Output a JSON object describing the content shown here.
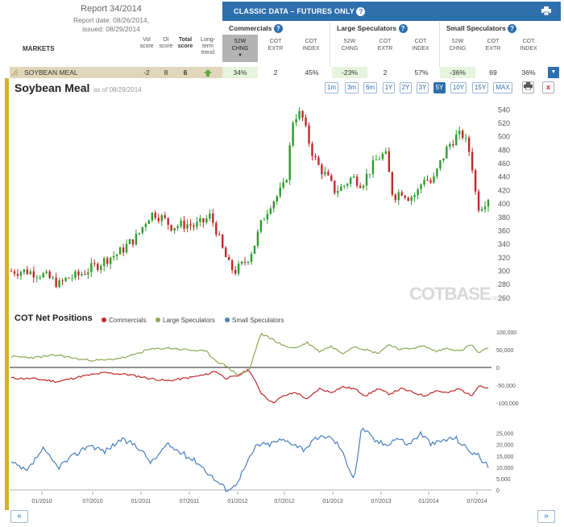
{
  "report": {
    "title": "Report 34/2014",
    "report_date": "Report date: 08/26/2014,",
    "issued": "issued: 08/29/2014"
  },
  "header": {
    "markets_label": "MARKETS",
    "vol_score": [
      "Vol",
      "score"
    ],
    "oi_score": [
      "OI",
      "score"
    ],
    "total_score": [
      "Total",
      "score"
    ],
    "long_term": [
      "Long-",
      "term",
      "trend"
    ]
  },
  "classic": {
    "title": "CLASSIC DATA – FUTURES ONLY",
    "groups": [
      {
        "name": "Commercials",
        "cols": [
          [
            "52W",
            "CHNG"
          ],
          [
            "COT",
            "EXTR"
          ],
          [
            "COT",
            "INDEX"
          ]
        ]
      },
      {
        "name": "Large Speculators",
        "cols": [
          [
            "52W",
            "CHNG"
          ],
          [
            "COT",
            "EXTR"
          ],
          [
            "COT",
            "INDEX"
          ]
        ]
      },
      {
        "name": "Small Speculators",
        "cols": [
          [
            "52W",
            "CHNG"
          ],
          [
            "COT",
            "EXTR"
          ],
          [
            "COT",
            "INDEX"
          ]
        ]
      }
    ]
  },
  "row": {
    "market": "SOYBEAN MEAL",
    "vol": "-2",
    "oi": "8",
    "total": "6",
    "comm": [
      "34%",
      "2",
      "45%"
    ],
    "large": [
      "-23%",
      "2",
      "57%"
    ],
    "small": [
      "-36%",
      "69",
      "36%"
    ]
  },
  "chart": {
    "title": "Soybean Meal",
    "as_of": "as of 08/29/2014",
    "ranges": [
      "1m",
      "3m",
      "6m",
      "1Y",
      "2Y",
      "3Y",
      "5Y",
      "10Y",
      "15Y",
      "MAX"
    ],
    "active_range": "5Y",
    "close_label": "x"
  },
  "cot": {
    "title": "COT Net Positions",
    "legend": [
      "Commercials",
      "Large Speculators",
      "Small Speculators"
    ]
  },
  "watermark": {
    "main": "COTBASE",
    "sub": ".com"
  },
  "colors": {
    "accent": "#2e6fae",
    "up": "#2e9a2e",
    "down": "#c0282a",
    "commercials": "#c0282a",
    "large": "#8aaa55",
    "small": "#4a7fbf",
    "sidebar": "#d4af37"
  },
  "chart_data": [
    {
      "type": "candlestick",
      "title": "Soybean Meal",
      "ylim": [
        255,
        550
      ],
      "yticks": [
        260,
        280,
        300,
        320,
        340,
        360,
        380,
        400,
        420,
        440,
        460,
        480,
        500,
        520,
        540
      ],
      "x_ticks": [
        "01/2010",
        "07/2010",
        "01/2011",
        "07/2011",
        "01/2012",
        "07/2012",
        "01/2013",
        "07/2013",
        "01/2014",
        "07/2014"
      ],
      "anchors": [
        [
          0,
          300
        ],
        [
          20,
          300
        ],
        [
          40,
          295
        ],
        [
          55,
          285
        ],
        [
          62,
          280
        ],
        [
          72,
          290
        ],
        [
          85,
          293
        ],
        [
          100,
          303
        ],
        [
          112,
          310
        ],
        [
          125,
          320
        ],
        [
          137,
          326
        ],
        [
          150,
          340
        ],
        [
          162,
          352
        ],
        [
          175,
          380
        ],
        [
          183,
          387
        ],
        [
          195,
          378
        ],
        [
          205,
          367
        ],
        [
          215,
          368
        ],
        [
          225,
          370
        ],
        [
          235,
          367
        ],
        [
          245,
          372
        ],
        [
          255,
          382
        ],
        [
          262,
          365
        ],
        [
          270,
          335
        ],
        [
          280,
          307
        ],
        [
          287,
          300
        ],
        [
          297,
          310
        ],
        [
          305,
          322
        ],
        [
          312,
          340
        ],
        [
          322,
          375
        ],
        [
          332,
          400
        ],
        [
          340,
          410
        ],
        [
          352,
          430
        ],
        [
          362,
          530
        ],
        [
          372,
          535
        ],
        [
          380,
          500
        ],
        [
          388,
          470
        ],
        [
          395,
          455
        ],
        [
          405,
          440
        ],
        [
          415,
          420
        ],
        [
          425,
          425
        ],
        [
          437,
          440
        ],
        [
          450,
          430
        ],
        [
          460,
          450
        ],
        [
          470,
          468
        ],
        [
          480,
          475
        ],
        [
          490,
          410
        ],
        [
          500,
          420
        ],
        [
          510,
          410
        ],
        [
          520,
          415
        ],
        [
          530,
          440
        ],
        [
          540,
          430
        ],
        [
          550,
          460
        ],
        [
          560,
          485
        ],
        [
          570,
          500
        ],
        [
          580,
          503
        ],
        [
          590,
          470
        ],
        [
          595,
          420
        ],
        [
          600,
          395
        ],
        [
          605,
          400
        ],
        [
          612,
          410
        ]
      ],
      "xlim": [
        0,
        612
      ]
    },
    {
      "type": "line",
      "title": "COT Net Positions",
      "ylim": [
        -110000,
        110000
      ],
      "yticks": [
        100000,
        50000,
        0,
        -50000,
        -100000
      ],
      "series": [
        {
          "name": "Commercials",
          "x": [
            0,
            30,
            60,
            90,
            120,
            150,
            175,
            200,
            225,
            250,
            262,
            275,
            290,
            305,
            320,
            335,
            350,
            365,
            380,
            395,
            410,
            425,
            440,
            455,
            470,
            485,
            500,
            515,
            530,
            545,
            560,
            575,
            590,
            600,
            612
          ],
          "values": [
            -30000,
            -32000,
            -40000,
            -25000,
            -15000,
            -20000,
            -30000,
            -38000,
            -30000,
            -20000,
            -10000,
            -30000,
            -25000,
            -5000,
            -70000,
            -100000,
            -80000,
            -70000,
            -90000,
            -60000,
            -70000,
            -55000,
            -60000,
            -80000,
            -60000,
            -75000,
            -60000,
            -70000,
            -80000,
            -65000,
            -72000,
            -60000,
            -80000,
            -50000,
            -60000
          ]
        },
        {
          "name": "Large Speculators",
          "x": [
            0,
            30,
            60,
            90,
            120,
            150,
            175,
            200,
            225,
            250,
            262,
            275,
            290,
            305,
            320,
            335,
            350,
            365,
            380,
            395,
            410,
            425,
            440,
            455,
            470,
            485,
            500,
            515,
            530,
            545,
            560,
            575,
            590,
            600,
            612
          ],
          "values": [
            30000,
            28000,
            35000,
            22000,
            20000,
            30000,
            50000,
            55000,
            50000,
            45000,
            20000,
            5000,
            -20000,
            -10000,
            95000,
            80000,
            60000,
            55000,
            70000,
            45000,
            60000,
            40000,
            60000,
            50000,
            40000,
            65000,
            50000,
            55000,
            60000,
            45000,
            55000,
            45000,
            65000,
            40000,
            55000
          ]
        },
        {
          "name": "Small Speculators",
          "x": [
            0,
            20,
            40,
            60,
            80,
            100,
            120,
            140,
            160,
            180,
            200,
            220,
            240,
            260,
            275,
            285,
            300,
            315,
            330,
            345,
            360,
            375,
            390,
            405,
            420,
            440,
            450,
            465,
            480,
            495,
            510,
            525,
            540,
            555,
            570,
            585,
            600,
            612
          ],
          "values": [
            12000,
            8000,
            18000,
            10000,
            15000,
            20000,
            17000,
            22000,
            20000,
            12000,
            20000,
            16000,
            12000,
            5000,
            500,
            1000,
            10000,
            20000,
            20000,
            22000,
            21000,
            18000,
            22000,
            24000,
            20000,
            5000,
            28000,
            22000,
            20000,
            23000,
            20000,
            25000,
            20000,
            22000,
            23000,
            18000,
            15000,
            10000
          ]
        }
      ],
      "panels": [
        {
          "yticks": [
            100000,
            50000,
            0,
            -50000,
            -100000
          ],
          "series": [
            "Commercials",
            "Large Speculators"
          ]
        },
        {
          "yticks": [
            25000,
            20000,
            15000,
            10000,
            5000,
            0
          ],
          "series": [
            "Small Speculators"
          ]
        }
      ]
    }
  ]
}
